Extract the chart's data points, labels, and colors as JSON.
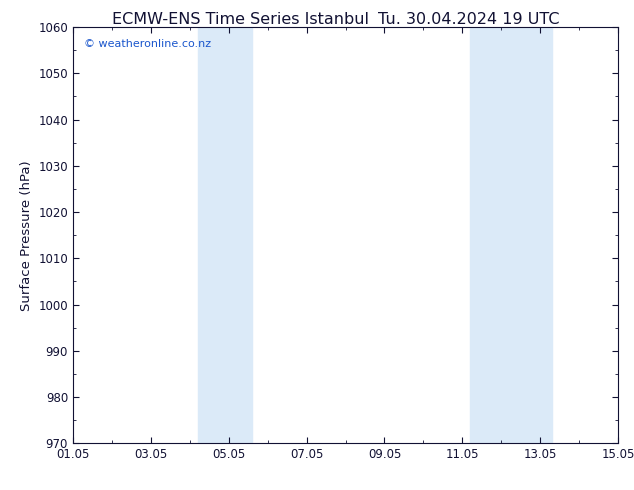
{
  "title": "ECMW-ENS Time Series Istanbul",
  "title2": "Tu. 30.04.2024 19 UTC",
  "ylabel": "Surface Pressure (hPa)",
  "ylim": [
    970,
    1060
  ],
  "yticks": [
    970,
    980,
    990,
    1000,
    1010,
    1020,
    1030,
    1040,
    1050,
    1060
  ],
  "xlim": [
    0,
    14
  ],
  "xtick_positions": [
    0,
    2,
    4,
    6,
    8,
    10,
    12,
    14
  ],
  "xtick_labels": [
    "01.05",
    "03.05",
    "05.05",
    "07.05",
    "09.05",
    "11.05",
    "13.05",
    "15.05"
  ],
  "shade_bands": [
    {
      "xmin": 3.2,
      "xmax": 4.6
    },
    {
      "xmin": 10.2,
      "xmax": 12.3
    }
  ],
  "shade_color": "#dbeaf8",
  "background_color": "#ffffff",
  "plot_bg_color": "#ffffff",
  "watermark": "© weatheronline.co.nz",
  "watermark_color": "#1a56cc",
  "title_color": "#111133",
  "axis_color": "#111133",
  "tick_color": "#111133",
  "title_fontsize": 11.5,
  "ylabel_fontsize": 9.5,
  "tick_fontsize": 8.5
}
